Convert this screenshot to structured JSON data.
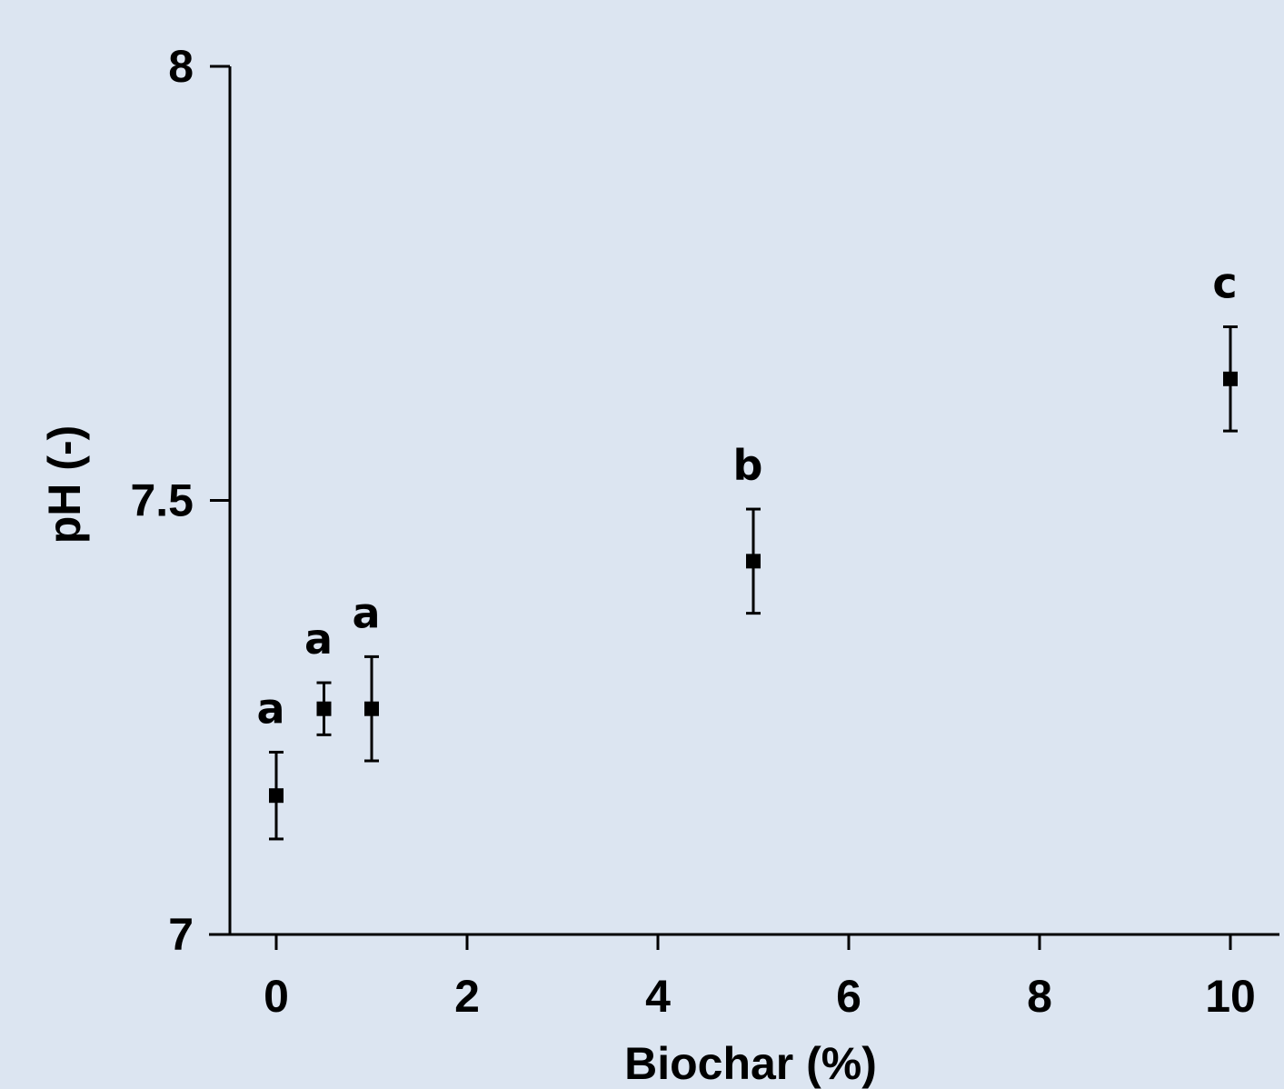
{
  "chart_data": {
    "type": "scatter",
    "title": "",
    "xlabel": "Biochar (%)",
    "ylabel": "pH (-)",
    "xlim": [
      -0.5,
      10.4
    ],
    "ylim": [
      7,
      8
    ],
    "x_ticks": [
      0,
      2,
      4,
      6,
      8,
      10
    ],
    "x_tick_labels": [
      "0",
      "2",
      "4",
      "6",
      "8",
      "10"
    ],
    "y_ticks": [
      7,
      7.5,
      8
    ],
    "y_tick_labels": [
      "7",
      "7.5",
      "8"
    ],
    "grid": false,
    "legend": "none",
    "marker_color": "#000000",
    "points": [
      {
        "x": 0,
        "y": 7.16,
        "err_low": 0.05,
        "err_high": 0.05,
        "label": "a"
      },
      {
        "x": 0.5,
        "y": 7.26,
        "err_low": 0.03,
        "err_high": 0.03,
        "label": "a"
      },
      {
        "x": 1,
        "y": 7.26,
        "err_low": 0.06,
        "err_high": 0.06,
        "label": "a"
      },
      {
        "x": 5,
        "y": 7.43,
        "err_low": 0.06,
        "err_high": 0.06,
        "label": "b"
      },
      {
        "x": 10,
        "y": 7.64,
        "err_low": 0.06,
        "err_high": 0.06,
        "label": "c"
      }
    ]
  }
}
